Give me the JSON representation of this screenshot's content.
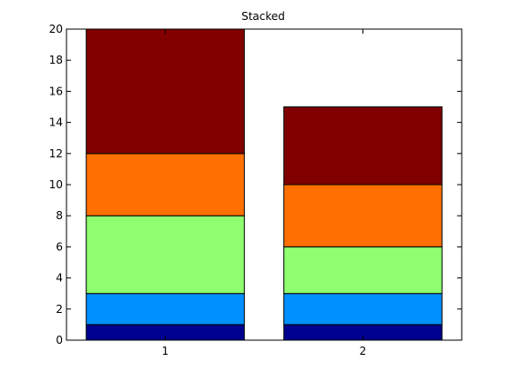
{
  "chart_data": {
    "type": "bar",
    "stacked": true,
    "title": "Stacked",
    "xlabel": "",
    "ylabel": "",
    "categories": [
      "1",
      "2"
    ],
    "ylim": [
      0,
      20
    ],
    "yticks": [
      0,
      2,
      4,
      6,
      8,
      10,
      12,
      14,
      16,
      18,
      20
    ],
    "grid": false,
    "legend": "none",
    "series": [
      {
        "color": "#000090",
        "values": [
          1,
          1
        ]
      },
      {
        "color": "#0090ff",
        "values": [
          2,
          2
        ]
      },
      {
        "color": "#8fff6f",
        "values": [
          5,
          3
        ]
      },
      {
        "color": "#ff7000",
        "values": [
          4,
          4
        ]
      },
      {
        "color": "#800000",
        "values": [
          8,
          5
        ]
      }
    ]
  }
}
